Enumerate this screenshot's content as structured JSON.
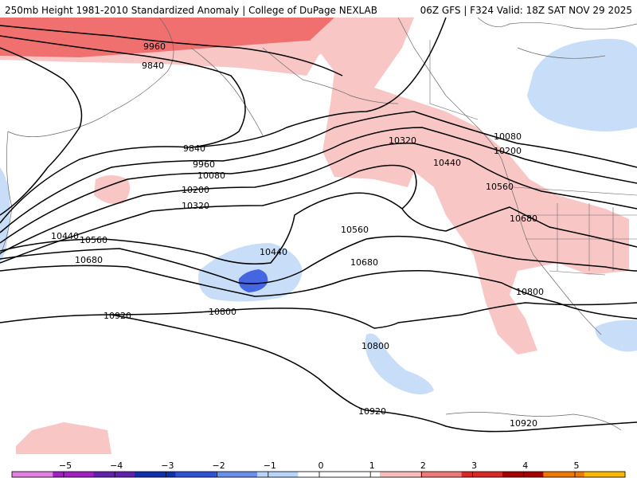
{
  "header": {
    "left": "250mb Height 1981-2010 Standardized Anomaly | College of DuPage NEXLAB",
    "right": "06Z GFS | F324 Valid: 18Z SAT NOV 29 2025"
  },
  "contour_labels": [
    "9960",
    "9840",
    "9840",
    "9960",
    "10080",
    "10200",
    "10320",
    "10440",
    "10560",
    "10680",
    "10920",
    "10440",
    "10800",
    "10560",
    "10680",
    "10320",
    "10440",
    "10560",
    "10680",
    "10800",
    "10800",
    "10920",
    "10920",
    "10080",
    "10200"
  ],
  "colorbar": {
    "ticks": [
      "−5",
      "−4",
      "−3",
      "−2",
      "−1",
      "0",
      "1",
      "2",
      "3",
      "4",
      "5"
    ],
    "colors": [
      "#e080e0",
      "#a020c0",
      "#6020b0",
      "#1030b0",
      "#3050d8",
      "#6a8df0",
      "#b8d4f8",
      "#ffffff",
      "#ffffff",
      "#f9bcbc",
      "#f07878",
      "#d82828",
      "#a80000",
      "#f07800",
      "#f8b800"
    ]
  },
  "colors": {
    "pos1": "#f9c6c6",
    "pos2": "#f07070",
    "neg1": "#c8def8",
    "neg2": "#4466e0"
  }
}
